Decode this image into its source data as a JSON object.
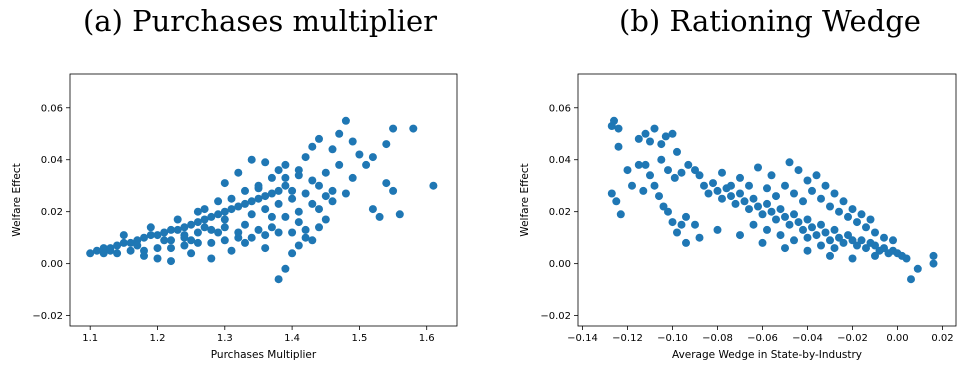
{
  "figure": {
    "caption_a": "(a) Purchases multiplier",
    "caption_b": "(b) Rationing Wedge"
  },
  "chart_data": [
    {
      "type": "scatter",
      "title": "(a) Purchases multiplier",
      "xlabel": "Purchases Multiplier",
      "ylabel": "Welfare Effect",
      "xlim": [
        1.07,
        1.645
      ],
      "ylim": [
        -0.024,
        0.073
      ],
      "xticks": [
        1.1,
        1.2,
        1.3,
        1.4,
        1.5,
        1.6
      ],
      "yticks": [
        -0.02,
        0.0,
        0.02,
        0.04,
        0.06
      ],
      "xtick_labels": [
        "1.1",
        "1.2",
        "1.3",
        "1.4",
        "1.5",
        "1.6"
      ],
      "ytick_labels": [
        "−0.02",
        "0.00",
        "0.02",
        "0.04",
        "0.06"
      ],
      "color": "#1f77b4",
      "points": [
        [
          1.1,
          0.004
        ],
        [
          1.11,
          0.005
        ],
        [
          1.12,
          0.006
        ],
        [
          1.13,
          0.006
        ],
        [
          1.14,
          0.007
        ],
        [
          1.15,
          0.008
        ],
        [
          1.16,
          0.008
        ],
        [
          1.17,
          0.009
        ],
        [
          1.18,
          0.01
        ],
        [
          1.19,
          0.011
        ],
        [
          1.2,
          0.011
        ],
        [
          1.21,
          0.012
        ],
        [
          1.22,
          0.013
        ],
        [
          1.23,
          0.013
        ],
        [
          1.24,
          0.014
        ],
        [
          1.25,
          0.015
        ],
        [
          1.26,
          0.016
        ],
        [
          1.27,
          0.017
        ],
        [
          1.28,
          0.018
        ],
        [
          1.29,
          0.019
        ],
        [
          1.3,
          0.02
        ],
        [
          1.31,
          0.021
        ],
        [
          1.32,
          0.022
        ],
        [
          1.33,
          0.023
        ],
        [
          1.34,
          0.024
        ],
        [
          1.35,
          0.025
        ],
        [
          1.36,
          0.026
        ],
        [
          1.37,
          0.027
        ],
        [
          1.38,
          0.028
        ],
        [
          1.39,
          0.03
        ],
        [
          1.12,
          0.004
        ],
        [
          1.14,
          0.004
        ],
        [
          1.16,
          0.005
        ],
        [
          1.18,
          0.005
        ],
        [
          1.2,
          0.006
        ],
        [
          1.22,
          0.006
        ],
        [
          1.24,
          0.007
        ],
        [
          1.26,
          0.008
        ],
        [
          1.28,
          0.008
        ],
        [
          1.3,
          0.009
        ],
        [
          1.32,
          0.01
        ],
        [
          1.34,
          0.01
        ],
        [
          1.36,
          0.011
        ],
        [
          1.38,
          0.012
        ],
        [
          1.4,
          0.012
        ],
        [
          1.42,
          0.013
        ],
        [
          1.15,
          0.011
        ],
        [
          1.19,
          0.014
        ],
        [
          1.23,
          0.017
        ],
        [
          1.27,
          0.021
        ],
        [
          1.31,
          0.025
        ],
        [
          1.35,
          0.029
        ],
        [
          1.39,
          0.033
        ],
        [
          1.41,
          0.036
        ],
        [
          1.25,
          0.009
        ],
        [
          1.29,
          0.012
        ],
        [
          1.33,
          0.015
        ],
        [
          1.37,
          0.018
        ],
        [
          1.41,
          0.02
        ],
        [
          1.43,
          0.023
        ],
        [
          1.45,
          0.026
        ],
        [
          1.44,
          0.03
        ],
        [
          1.42,
          0.041
        ],
        [
          1.43,
          0.045
        ],
        [
          1.44,
          0.048
        ],
        [
          1.46,
          0.044
        ],
        [
          1.47,
          0.05
        ],
        [
          1.48,
          0.055
        ],
        [
          1.49,
          0.047
        ],
        [
          1.5,
          0.042
        ],
        [
          1.52,
          0.041
        ],
        [
          1.54,
          0.046
        ],
        [
          1.55,
          0.052
        ],
        [
          1.58,
          0.052
        ],
        [
          1.61,
          0.03
        ],
        [
          1.54,
          0.031
        ],
        [
          1.55,
          0.028
        ],
        [
          1.56,
          0.019
        ],
        [
          1.53,
          0.018
        ],
        [
          1.52,
          0.021
        ],
        [
          1.51,
          0.038
        ],
        [
          1.49,
          0.033
        ],
        [
          1.47,
          0.038
        ],
        [
          1.46,
          0.028
        ],
        [
          1.45,
          0.017
        ],
        [
          1.44,
          0.014
        ],
        [
          1.43,
          0.009
        ],
        [
          1.42,
          0.01
        ],
        [
          1.4,
          0.004
        ],
        [
          1.39,
          -0.002
        ],
        [
          1.38,
          -0.006
        ],
        [
          1.41,
          0.007
        ],
        [
          1.36,
          0.006
        ],
        [
          1.33,
          0.008
        ],
        [
          1.31,
          0.005
        ],
        [
          1.28,
          0.002
        ],
        [
          1.25,
          0.004
        ],
        [
          1.22,
          0.001
        ],
        [
          1.2,
          0.002
        ],
        [
          1.18,
          0.003
        ],
        [
          1.34,
          0.019
        ],
        [
          1.36,
          0.021
        ],
        [
          1.38,
          0.023
        ],
        [
          1.4,
          0.025
        ],
        [
          1.42,
          0.027
        ],
        [
          1.37,
          0.033
        ],
        [
          1.35,
          0.03
        ],
        [
          1.33,
          0.028
        ],
        [
          1.29,
          0.024
        ],
        [
          1.26,
          0.02
        ],
        [
          1.24,
          0.011
        ],
        [
          1.27,
          0.014
        ],
        [
          1.3,
          0.017
        ],
        [
          1.21,
          0.009
        ],
        [
          1.17,
          0.007
        ],
        [
          1.13,
          0.005
        ],
        [
          1.39,
          0.018
        ],
        [
          1.41,
          0.016
        ],
        [
          1.44,
          0.021
        ],
        [
          1.46,
          0.024
        ],
        [
          1.48,
          0.027
        ],
        [
          1.4,
          0.028
        ],
        [
          1.37,
          0.014
        ],
        [
          1.35,
          0.013
        ],
        [
          1.32,
          0.012
        ],
        [
          1.3,
          0.014
        ],
        [
          1.28,
          0.013
        ],
        [
          1.26,
          0.012
        ],
        [
          1.24,
          0.01
        ],
        [
          1.22,
          0.009
        ],
        [
          1.39,
          0.038
        ],
        [
          1.41,
          0.034
        ],
        [
          1.43,
          0.032
        ],
        [
          1.45,
          0.035
        ],
        [
          1.38,
          0.036
        ],
        [
          1.36,
          0.039
        ],
        [
          1.34,
          0.04
        ],
        [
          1.32,
          0.035
        ],
        [
          1.3,
          0.031
        ]
      ]
    },
    {
      "type": "scatter",
      "title": "(b) Rationing Wedge",
      "xlabel": "Average Wedge in State-by-Industry",
      "ylabel": "Welfare Effect",
      "xlim": [
        -0.142,
        0.026
      ],
      "ylim": [
        -0.024,
        0.073
      ],
      "xticks": [
        -0.14,
        -0.12,
        -0.1,
        -0.08,
        -0.06,
        -0.04,
        -0.02,
        0.0,
        0.02
      ],
      "yticks": [
        -0.02,
        0.0,
        0.02,
        0.04,
        0.06
      ],
      "xtick_labels": [
        "−0.14",
        "−0.12",
        "−0.10",
        "−0.08",
        "−0.06",
        "−0.04",
        "−0.02",
        "0.00",
        "0.02"
      ],
      "ytick_labels": [
        "−0.02",
        "0.00",
        "0.02",
        "0.04",
        "0.06"
      ],
      "color": "#1f77b4",
      "points": [
        [
          -0.127,
          0.053
        ],
        [
          -0.126,
          0.055
        ],
        [
          -0.124,
          0.052
        ],
        [
          -0.127,
          0.027
        ],
        [
          -0.125,
          0.024
        ],
        [
          -0.123,
          0.019
        ],
        [
          -0.124,
          0.045
        ],
        [
          -0.12,
          0.036
        ],
        [
          -0.118,
          0.03
        ],
        [
          -0.115,
          0.048
        ],
        [
          -0.112,
          0.05
        ],
        [
          -0.11,
          0.047
        ],
        [
          -0.108,
          0.052
        ],
        [
          -0.105,
          0.046
        ],
        [
          -0.103,
          0.049
        ],
        [
          -0.1,
          0.05
        ],
        [
          -0.098,
          0.043
        ],
        [
          -0.112,
          0.038
        ],
        [
          -0.11,
          0.034
        ],
        [
          -0.108,
          0.03
        ],
        [
          -0.106,
          0.026
        ],
        [
          -0.104,
          0.022
        ],
        [
          -0.102,
          0.02
        ],
        [
          -0.1,
          0.016
        ],
        [
          -0.098,
          0.012
        ],
        [
          -0.096,
          0.015
        ],
        [
          -0.094,
          0.018
        ],
        [
          -0.105,
          0.04
        ],
        [
          -0.102,
          0.036
        ],
        [
          -0.099,
          0.033
        ],
        [
          -0.096,
          0.035
        ],
        [
          -0.093,
          0.038
        ],
        [
          -0.09,
          0.036
        ],
        [
          -0.088,
          0.034
        ],
        [
          -0.086,
          0.03
        ],
        [
          -0.084,
          0.027
        ],
        [
          -0.082,
          0.031
        ],
        [
          -0.08,
          0.028
        ],
        [
          -0.078,
          0.025
        ],
        [
          -0.076,
          0.029
        ],
        [
          -0.074,
          0.026
        ],
        [
          -0.072,
          0.023
        ],
        [
          -0.07,
          0.027
        ],
        [
          -0.068,
          0.024
        ],
        [
          -0.066,
          0.021
        ],
        [
          -0.064,
          0.025
        ],
        [
          -0.062,
          0.022
        ],
        [
          -0.06,
          0.019
        ],
        [
          -0.058,
          0.023
        ],
        [
          -0.056,
          0.02
        ],
        [
          -0.054,
          0.017
        ],
        [
          -0.052,
          0.021
        ],
        [
          -0.05,
          0.018
        ],
        [
          -0.048,
          0.015
        ],
        [
          -0.046,
          0.019
        ],
        [
          -0.044,
          0.016
        ],
        [
          -0.042,
          0.013
        ],
        [
          -0.04,
          0.017
        ],
        [
          -0.038,
          0.014
        ],
        [
          -0.036,
          0.011
        ],
        [
          -0.034,
          0.015
        ],
        [
          -0.032,
          0.012
        ],
        [
          -0.03,
          0.009
        ],
        [
          -0.028,
          0.013
        ],
        [
          -0.026,
          0.01
        ],
        [
          -0.024,
          0.008
        ],
        [
          -0.022,
          0.011
        ],
        [
          -0.02,
          0.009
        ],
        [
          -0.018,
          0.007
        ],
        [
          -0.016,
          0.009
        ],
        [
          -0.014,
          0.006
        ],
        [
          -0.012,
          0.008
        ],
        [
          -0.01,
          0.007
        ],
        [
          -0.008,
          0.005
        ],
        [
          -0.006,
          0.006
        ],
        [
          -0.004,
          0.004
        ],
        [
          -0.002,
          0.005
        ],
        [
          0.0,
          0.004
        ],
        [
          0.002,
          0.003
        ],
        [
          0.004,
          0.002
        ],
        [
          0.006,
          -0.006
        ],
        [
          0.009,
          -0.002
        ],
        [
          0.016,
          0.0
        ],
        [
          0.016,
          0.003
        ],
        [
          -0.01,
          0.003
        ],
        [
          -0.02,
          0.002
        ],
        [
          -0.03,
          0.003
        ],
        [
          -0.04,
          0.005
        ],
        [
          -0.05,
          0.006
        ],
        [
          -0.06,
          0.008
        ],
        [
          -0.07,
          0.011
        ],
        [
          -0.08,
          0.013
        ],
        [
          -0.09,
          0.015
        ],
        [
          -0.094,
          0.008
        ],
        [
          -0.088,
          0.01
        ],
        [
          -0.078,
          0.035
        ],
        [
          -0.074,
          0.03
        ],
        [
          -0.07,
          0.033
        ],
        [
          -0.066,
          0.03
        ],
        [
          -0.062,
          0.037
        ],
        [
          -0.058,
          0.029
        ],
        [
          -0.054,
          0.026
        ],
        [
          -0.05,
          0.03
        ],
        [
          -0.046,
          0.027
        ],
        [
          -0.042,
          0.024
        ],
        [
          -0.038,
          0.028
        ],
        [
          -0.034,
          0.025
        ],
        [
          -0.03,
          0.022
        ],
        [
          -0.026,
          0.02
        ],
        [
          -0.022,
          0.018
        ],
        [
          -0.018,
          0.016
        ],
        [
          -0.014,
          0.014
        ],
        [
          -0.01,
          0.012
        ],
        [
          -0.006,
          0.01
        ],
        [
          -0.002,
          0.009
        ],
        [
          -0.056,
          0.034
        ],
        [
          -0.048,
          0.039
        ],
        [
          -0.044,
          0.036
        ],
        [
          -0.04,
          0.032
        ],
        [
          -0.036,
          0.034
        ],
        [
          -0.032,
          0.03
        ],
        [
          -0.028,
          0.027
        ],
        [
          -0.024,
          0.024
        ],
        [
          -0.02,
          0.021
        ],
        [
          -0.016,
          0.019
        ],
        [
          -0.012,
          0.017
        ],
        [
          -0.064,
          0.015
        ],
        [
          -0.058,
          0.013
        ],
        [
          -0.052,
          0.011
        ],
        [
          -0.046,
          0.009
        ],
        [
          -0.04,
          0.01
        ],
        [
          -0.034,
          0.007
        ],
        [
          -0.028,
          0.006
        ],
        [
          -0.115,
          0.038
        ],
        [
          -0.113,
          0.028
        ]
      ]
    }
  ]
}
